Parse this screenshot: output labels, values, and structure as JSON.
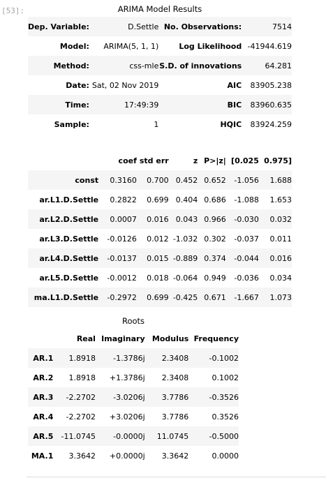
{
  "prompt": "[53]:",
  "summary": {
    "caption": "ARIMA Model Results",
    "rows": [
      [
        "Dep. Variable:",
        "D.Settle",
        "No. Observations:",
        "7514"
      ],
      [
        "Model:",
        "ARIMA(5, 1, 1)",
        "Log Likelihood",
        "-41944.619"
      ],
      [
        "Method:",
        "css-mle",
        "S.D. of innovations",
        "64.281"
      ],
      [
        "Date:",
        "Sat, 02 Nov 2019",
        "AIC",
        "83905.238"
      ],
      [
        "Time:",
        "17:49:39",
        "BIC",
        "83960.635"
      ],
      [
        "Sample:",
        "1",
        "HQIC",
        "83924.259"
      ]
    ]
  },
  "coef": {
    "headers": [
      "",
      "coef",
      "std err",
      "z",
      "P>|z|",
      "[0.025",
      "0.975]"
    ],
    "rows": [
      [
        "const",
        "0.3160",
        "0.700",
        "0.452",
        "0.652",
        "-1.056",
        "1.688"
      ],
      [
        "ar.L1.D.Settle",
        "0.2822",
        "0.699",
        "0.404",
        "0.686",
        "-1.088",
        "1.653"
      ],
      [
        "ar.L2.D.Settle",
        "0.0007",
        "0.016",
        "0.043",
        "0.966",
        "-0.030",
        "0.032"
      ],
      [
        "ar.L3.D.Settle",
        "-0.0126",
        "0.012",
        "-1.032",
        "0.302",
        "-0.037",
        "0.011"
      ],
      [
        "ar.L4.D.Settle",
        "-0.0137",
        "0.015",
        "-0.889",
        "0.374",
        "-0.044",
        "0.016"
      ],
      [
        "ar.L5.D.Settle",
        "-0.0012",
        "0.018",
        "-0.064",
        "0.949",
        "-0.036",
        "0.034"
      ],
      [
        "ma.L1.D.Settle",
        "-0.2972",
        "0.699",
        "-0.425",
        "0.671",
        "-1.667",
        "1.073"
      ]
    ]
  },
  "roots": {
    "caption": "Roots",
    "headers": [
      "",
      "Real",
      "Imaginary",
      "Modulus",
      "Frequency"
    ],
    "rows": [
      [
        "AR.1",
        "1.8918",
        "-1.3786j",
        "2.3408",
        "-0.1002"
      ],
      [
        "AR.2",
        "1.8918",
        "+1.3786j",
        "2.3408",
        "0.1002"
      ],
      [
        "AR.3",
        "-2.2702",
        "-3.0206j",
        "3.7786",
        "-0.3526"
      ],
      [
        "AR.4",
        "-2.2702",
        "+3.0206j",
        "3.7786",
        "0.3526"
      ],
      [
        "AR.5",
        "-11.0745",
        "-0.0000j",
        "11.0745",
        "-0.5000"
      ],
      [
        "MA.1",
        "3.3642",
        "+0.0000j",
        "3.3642",
        "0.0000"
      ]
    ]
  }
}
